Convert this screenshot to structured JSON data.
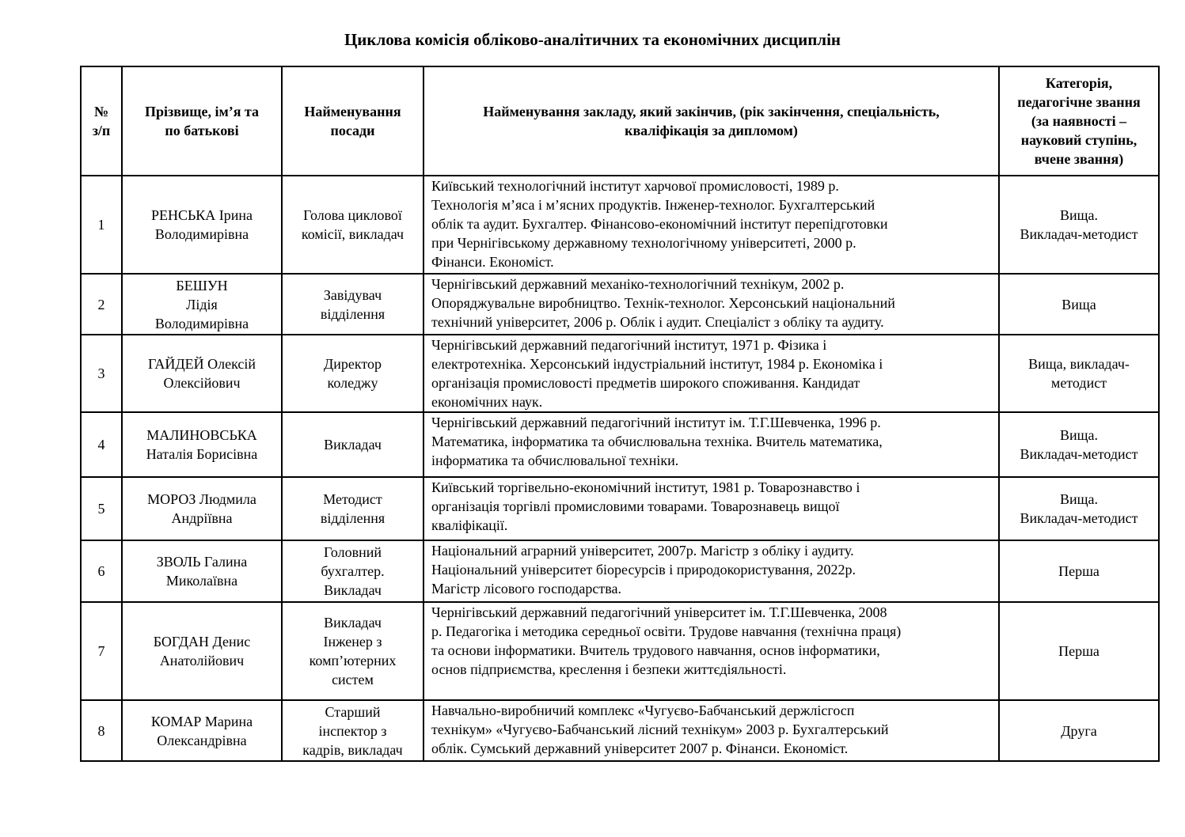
{
  "title": "Циклова комісія обліково-аналітичних та економічних дисциплін",
  "headers": [
    "№\nз/п",
    "Прізвище, ім’я та\nпо батькові",
    "Найменування\nпосади",
    "Найменування закладу, який закінчив, (рік закінчення, спеціальність,\nкваліфікація за дипломом)",
    "Категорія,\nпедагогічне звання\n(за наявності –\nнауковий ступінь,\nвчене звання)"
  ],
  "rows": [
    {
      "num": "1",
      "name": "РЕНСЬКА Ірина\nВолодимирівна",
      "position": "Голова циклової\nкомісії, викладач",
      "education": "Київський технологічний інститут харчової промисловості, 1989 р.\nТехнологія м’яса і м’ясних продуктів. Інженер-технолог. Бухгалтерський\nоблік та аудит. Бухгалтер. Фінансово-економічний інститут перепідготовки\nпри Чернігівському державному технологічному університеті, 2000 р.\nФінанси. Економіст.",
      "category": "Вища.\nВикладач-методист"
    },
    {
      "num": "2",
      "name": "БЕШУН\nЛідія\nВолодимирівна",
      "position": "Завідувач\nвідділення",
      "education": "Чернігівський державний механіко-технологічний технікум, 2002 р.\nОпоряджувальне виробництво. Технік-технолог. Херсонський національний\nтехнічний університет, 2006 р. Облік і аудит. Спеціаліст з обліку та аудиту.",
      "category": "Вища"
    },
    {
      "num": "3",
      "name": "ГАЙДЕЙ Олексій\nОлексійович",
      "position": "Директор\nколеджу",
      "education": "Чернігівський державний педагогічний інститут, 1971 р. Фізика і\nелектротехніка. Херсонський індустріальний інститут, 1984 р. Економіка і\nорганізація промисловості предметів широкого споживання. Кандидат\nекономічних наук.",
      "category": "Вища, викладач-\nметодист"
    },
    {
      "num": "4",
      "name": "МАЛИНОВСЬКА\nНаталія Борисівна",
      "position": "Викладач",
      "education": "Чернігівський державний педагогічний інститут ім. Т.Г.Шевченка, 1996 р.\nМатематика, інформатика та обчислювальна техніка. Вчитель математика,\nінформатика та обчислювальної техніки.",
      "category": "Вища.\nВикладач-методист"
    },
    {
      "num": "5",
      "name": "МОРОЗ Людмила\nАндріївна",
      "position": "Методист\nвідділення",
      "education": "Київський торгівельно-економічний інститут, 1981 р. Товарознавство і\nорганізація торгівлі промисловими товарами. Товарознавець вищої\nкваліфікації.",
      "category": "Вища.\nВикладач-методист"
    },
    {
      "num": "6",
      "name": "ЗВОЛЬ Галина\nМиколаївна",
      "position": "Головний\nбухгалтер.\nВикладач",
      "education": "Національний аграрний університет, 2007р. Магістр з обліку і аудиту.\nНаціональний університет біоресурсів і природокористування,  2022р.\nМагістр лісового господарства.",
      "category": "Перша"
    },
    {
      "num": "7",
      "name": "БОГДАН Денис\nАнатолійович",
      "position": "Викладач\nІнженер з\nкомп’ютерних\nсистем",
      "education": "Чернігівський державний педагогічний університет  ім. Т.Г.Шевченка, 2008\nр. Педагогіка і методика середньої освіти. Трудове навчання (технічна праця)\nта основи інформатики. Вчитель трудового навчання, основ інформатики,\nоснов підприємства, креслення і безпеки життєдіяльності.",
      "category": "Перша"
    },
    {
      "num": "8",
      "name": "КОМАР Марина\nОлександрівна",
      "position": "Старший\nінспектор з\nкадрів, викладач",
      "education": "Навчально-виробничий комплекс «Чугуєво-Бабчанський держлісгосп\nтехнікум» «Чугуєво-Бабчанський лісний технікум» 2003 р. Бухгалтерський\nоблік. Сумський державний університет 2007 р. Фінанси. Економіст.",
      "category": "Друга"
    }
  ]
}
